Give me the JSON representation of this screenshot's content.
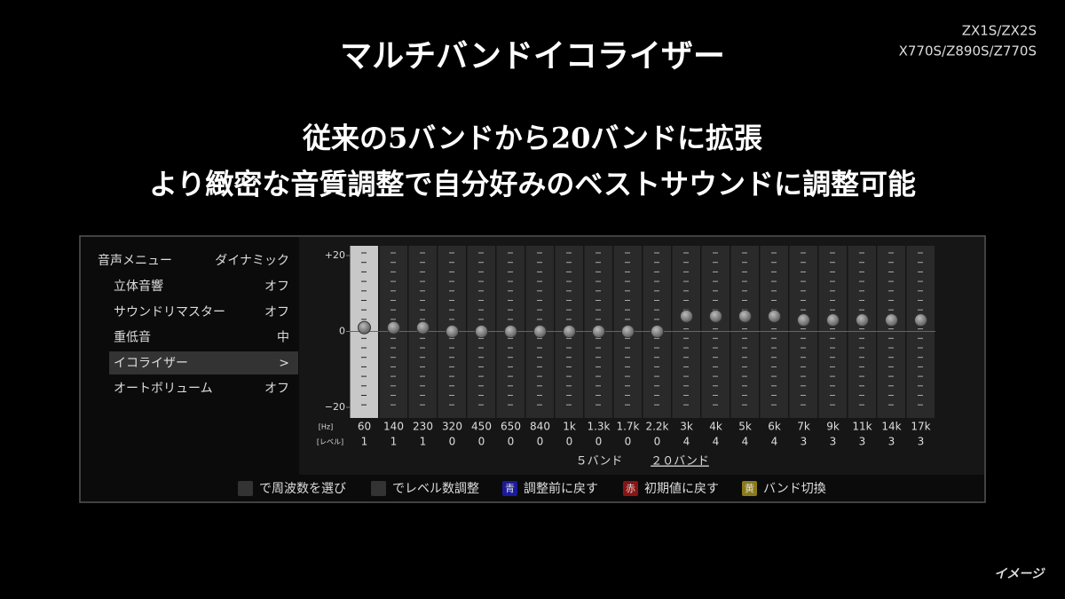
{
  "header": {
    "title": "マルチバンドイコライザー",
    "models": [
      "ZX1S/ZX2S",
      "X770S/Z890S/Z770S"
    ]
  },
  "headline": [
    "従来の5バンドから20バンドに拡張",
    "より緻密な音質調整で自分好みのベストサウンドに調整可能"
  ],
  "menu": {
    "title": "音声メニュー",
    "value": "ダイナミック",
    "items": [
      {
        "label": "立体音響",
        "value": "オフ"
      },
      {
        "label": "サウンドリマスター",
        "value": "オフ"
      },
      {
        "label": "重低音",
        "value": "中"
      },
      {
        "label": "イコライザー",
        "value": ">"
      },
      {
        "label": "オートボリューム",
        "value": "オフ"
      }
    ]
  },
  "chart_data": {
    "type": "dot",
    "categories": [
      "60",
      "140",
      "230",
      "320",
      "450",
      "650",
      "840",
      "1k",
      "1.3k",
      "1.7k",
      "2.2k",
      "3k",
      "4k",
      "5k",
      "6k",
      "7k",
      "9k",
      "11k",
      "14k",
      "17k"
    ],
    "values": [
      1,
      1,
      1,
      0,
      0,
      0,
      0,
      0,
      0,
      0,
      0,
      4,
      4,
      4,
      4,
      3,
      3,
      3,
      3,
      3
    ],
    "ylim": [
      -20,
      20
    ],
    "yticks": [
      {
        "value": 20,
        "label": "+20"
      },
      0,
      {
        "value": -20,
        "label": "−20"
      }
    ],
    "x_label": "[Hz]",
    "value_row_label": "[レベル]"
  },
  "band_modes": [
    "５バンド",
    "２０バンド"
  ],
  "footer": [
    {
      "text": "で周波数を選び"
    },
    {
      "text": "でレベル数調整"
    },
    {
      "key": "青",
      "text": "調整前に戻す"
    },
    {
      "key": "赤",
      "text": "初期値に戻す"
    },
    {
      "key": "黄",
      "text": "バンド切換"
    }
  ],
  "note": "イメージ"
}
